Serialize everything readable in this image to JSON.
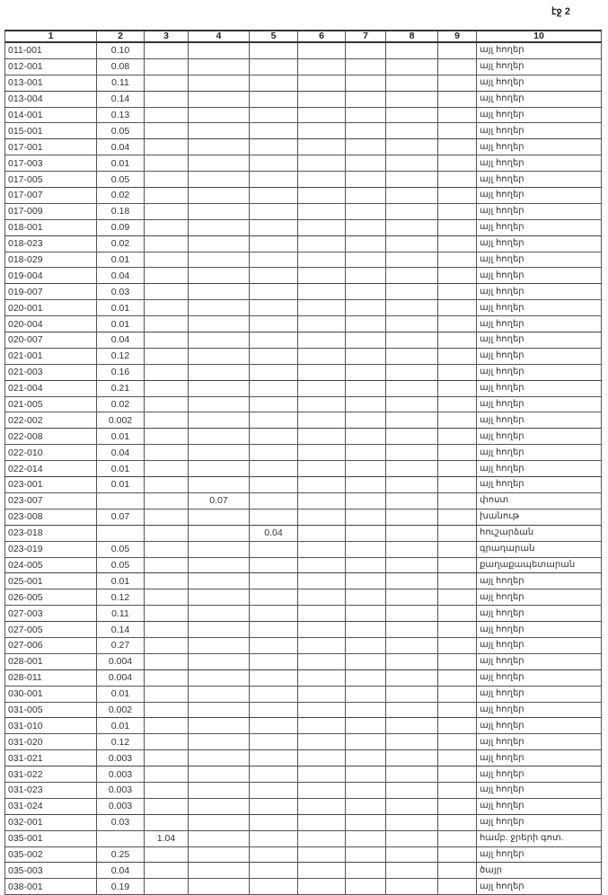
{
  "page_label": "էջ 2",
  "headers": [
    "1",
    "2",
    "3",
    "4",
    "5",
    "6",
    "7",
    "8",
    "9",
    "10"
  ],
  "rows": [
    [
      "011-001",
      "0.10",
      "",
      "",
      "",
      "",
      "",
      "",
      "",
      "այլ հողեր"
    ],
    [
      "012-001",
      "0.08",
      "",
      "",
      "",
      "",
      "",
      "",
      "",
      "այլ հողեր"
    ],
    [
      "013-001",
      "0.11",
      "",
      "",
      "",
      "",
      "",
      "",
      "",
      "այլ հողեր"
    ],
    [
      "013-004",
      "0.14",
      "",
      "",
      "",
      "",
      "",
      "",
      "",
      "այլ հողեր"
    ],
    [
      "014-001",
      "0.13",
      "",
      "",
      "",
      "",
      "",
      "",
      "",
      "այլ հողեր"
    ],
    [
      "015-001",
      "0.05",
      "",
      "",
      "",
      "",
      "",
      "",
      "",
      "այլ հողեր"
    ],
    [
      "017-001",
      "0.04",
      "",
      "",
      "",
      "",
      "",
      "",
      "",
      "այլ հողեր"
    ],
    [
      "017-003",
      "0.01",
      "",
      "",
      "",
      "",
      "",
      "",
      "",
      "այլ հողեր"
    ],
    [
      "017-005",
      "0.05",
      "",
      "",
      "",
      "",
      "",
      "",
      "",
      "այլ հողեր"
    ],
    [
      "017-007",
      "0.02",
      "",
      "",
      "",
      "",
      "",
      "",
      "",
      "այլ հողեր"
    ],
    [
      "017-009",
      "0.18",
      "",
      "",
      "",
      "",
      "",
      "",
      "",
      "այլ հողեր"
    ],
    [
      "018-001",
      "0.09",
      "",
      "",
      "",
      "",
      "",
      "",
      "",
      "այլ հողեր"
    ],
    [
      "018-023",
      "0.02",
      "",
      "",
      "",
      "",
      "",
      "",
      "",
      "այլ հողեր"
    ],
    [
      "018-029",
      "0.01",
      "",
      "",
      "",
      "",
      "",
      "",
      "",
      "այլ հողեր"
    ],
    [
      "019-004",
      "0.04",
      "",
      "",
      "",
      "",
      "",
      "",
      "",
      "այլ հողեր"
    ],
    [
      "019-007",
      "0.03",
      "",
      "",
      "",
      "",
      "",
      "",
      "",
      "այլ հողեր"
    ],
    [
      "020-001",
      "0.01",
      "",
      "",
      "",
      "",
      "",
      "",
      "",
      "այլ հողեր"
    ],
    [
      "020-004",
      "0.01",
      "",
      "",
      "",
      "",
      "",
      "",
      "",
      "այլ հողեր"
    ],
    [
      "020-007",
      "0.04",
      "",
      "",
      "",
      "",
      "",
      "",
      "",
      "այլ հողեր"
    ],
    [
      "021-001",
      "0.12",
      "",
      "",
      "",
      "",
      "",
      "",
      "",
      "այլ հողեր"
    ],
    [
      "021-003",
      "0.16",
      "",
      "",
      "",
      "",
      "",
      "",
      "",
      "այլ հողեր"
    ],
    [
      "021-004",
      "0.21",
      "",
      "",
      "",
      "",
      "",
      "",
      "",
      "այլ հողեր"
    ],
    [
      "021-005",
      "0.02",
      "",
      "",
      "",
      "",
      "",
      "",
      "",
      "այլ հողեր"
    ],
    [
      "022-002",
      "0.002",
      "",
      "",
      "",
      "",
      "",
      "",
      "",
      "այլ հողեր"
    ],
    [
      "022-008",
      "0.01",
      "",
      "",
      "",
      "",
      "",
      "",
      "",
      "այլ հողեր"
    ],
    [
      "022-010",
      "0.04",
      "",
      "",
      "",
      "",
      "",
      "",
      "",
      "այլ հողեր"
    ],
    [
      "022-014",
      "0.01",
      "",
      "",
      "",
      "",
      "",
      "",
      "",
      "այլ հողեր"
    ],
    [
      "023-001",
      "0.01",
      "",
      "",
      "",
      "",
      "",
      "",
      "",
      "այլ հողեր"
    ],
    [
      "023-007",
      "",
      "",
      "0.07",
      "",
      "",
      "",
      "",
      "",
      "փոստ"
    ],
    [
      "023-008",
      "0.07",
      "",
      "",
      "",
      "",
      "",
      "",
      "",
      "խանութ"
    ],
    [
      "023-018",
      "",
      "",
      "",
      "0.04",
      "",
      "",
      "",
      "",
      "հուշարձան"
    ],
    [
      "023-019",
      "0.05",
      "",
      "",
      "",
      "",
      "",
      "",
      "",
      "գրադարան"
    ],
    [
      "024-005",
      "0.05",
      "",
      "",
      "",
      "",
      "",
      "",
      "",
      "քաղաքապետարան"
    ],
    [
      "025-001",
      "0.01",
      "",
      "",
      "",
      "",
      "",
      "",
      "",
      "այլ հողեր"
    ],
    [
      "026-005",
      "0.12",
      "",
      "",
      "",
      "",
      "",
      "",
      "",
      "այլ հողեր"
    ],
    [
      "027-003",
      "0.11",
      "",
      "",
      "",
      "",
      "",
      "",
      "",
      "այլ հողեր"
    ],
    [
      "027-005",
      "0.14",
      "",
      "",
      "",
      "",
      "",
      "",
      "",
      "այլ հողեր"
    ],
    [
      "027-006",
      "0.27",
      "",
      "",
      "",
      "",
      "",
      "",
      "",
      "այլ հողեր"
    ],
    [
      "028-001",
      "0.004",
      "",
      "",
      "",
      "",
      "",
      "",
      "",
      "այլ հողեր"
    ],
    [
      "028-011",
      "0.004",
      "",
      "",
      "",
      "",
      "",
      "",
      "",
      "այլ հողեր"
    ],
    [
      "030-001",
      "0.01",
      "",
      "",
      "",
      "",
      "",
      "",
      "",
      "այլ հողեր"
    ],
    [
      "031-005",
      "0.002",
      "",
      "",
      "",
      "",
      "",
      "",
      "",
      "այլ հողեր"
    ],
    [
      "031-010",
      "0.01",
      "",
      "",
      "",
      "",
      "",
      "",
      "",
      "այլ հողեր"
    ],
    [
      "031-020",
      "0.12",
      "",
      "",
      "",
      "",
      "",
      "",
      "",
      "այլ հողեր"
    ],
    [
      "031-021",
      "0.003",
      "",
      "",
      "",
      "",
      "",
      "",
      "",
      "այլ հողեր"
    ],
    [
      "031-022",
      "0.003",
      "",
      "",
      "",
      "",
      "",
      "",
      "",
      "այլ հողեր"
    ],
    [
      "031-023",
      "0.003",
      "",
      "",
      "",
      "",
      "",
      "",
      "",
      "այլ հողեր"
    ],
    [
      "031-024",
      "0.003",
      "",
      "",
      "",
      "",
      "",
      "",
      "",
      "այլ հողեր"
    ],
    [
      "032-001",
      "0.03",
      "",
      "",
      "",
      "",
      "",
      "",
      "",
      "այլ հողեր"
    ],
    [
      "035-001",
      "",
      "1.04",
      "",
      "",
      "",
      "",
      "",
      "",
      "համբ. ջրերի գոտ."
    ],
    [
      "035-002",
      "0.25",
      "",
      "",
      "",
      "",
      "",
      "",
      "",
      "այլ հողեր"
    ],
    [
      "035-003",
      "0.04",
      "",
      "",
      "",
      "",
      "",
      "",
      "",
      "ծայր"
    ],
    [
      "038-001",
      "0.19",
      "",
      "",
      "",
      "",
      "",
      "",
      "",
      "այլ հողեր"
    ]
  ]
}
